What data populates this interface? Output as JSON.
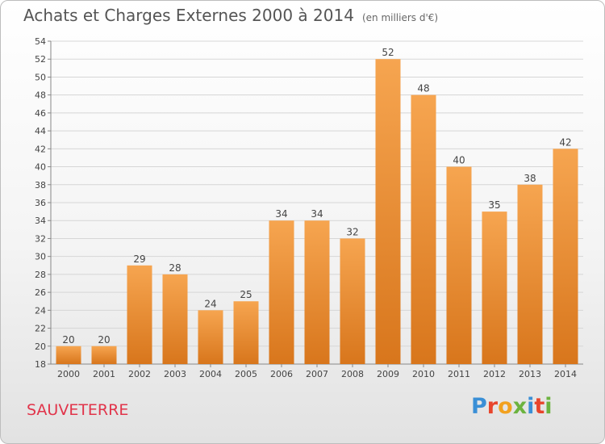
{
  "header": {
    "title": "Achats et Charges Externes 2000 à 2014",
    "subtitle": "(en milliers d'€)"
  },
  "footer": {
    "commune": "SAUVETERRE",
    "logo_text": "Proxiti",
    "logo_colors": [
      "#3a8fd6",
      "#e8452c",
      "#f2a11f",
      "#6cb33f",
      "#3a8fd6",
      "#e8452c",
      "#6cb33f"
    ]
  },
  "chart_data": {
    "type": "bar",
    "categories": [
      "2000",
      "2001",
      "2002",
      "2003",
      "2004",
      "2005",
      "2006",
      "2007",
      "2008",
      "2009",
      "2010",
      "2011",
      "2012",
      "2013",
      "2014"
    ],
    "values": [
      20,
      20,
      29,
      28,
      24,
      25,
      34,
      34,
      32,
      52,
      48,
      40,
      35,
      38,
      42
    ],
    "title": "Achats et Charges Externes 2000 à 2014",
    "ylim": [
      18,
      54
    ],
    "yticks": [
      18,
      20,
      22,
      24,
      26,
      28,
      30,
      32,
      34,
      36,
      38,
      40,
      42,
      44,
      46,
      48,
      50,
      52,
      54
    ],
    "grid": true,
    "bar_color_top": "#f6a550",
    "bar_color_bottom": "#d8761c"
  }
}
